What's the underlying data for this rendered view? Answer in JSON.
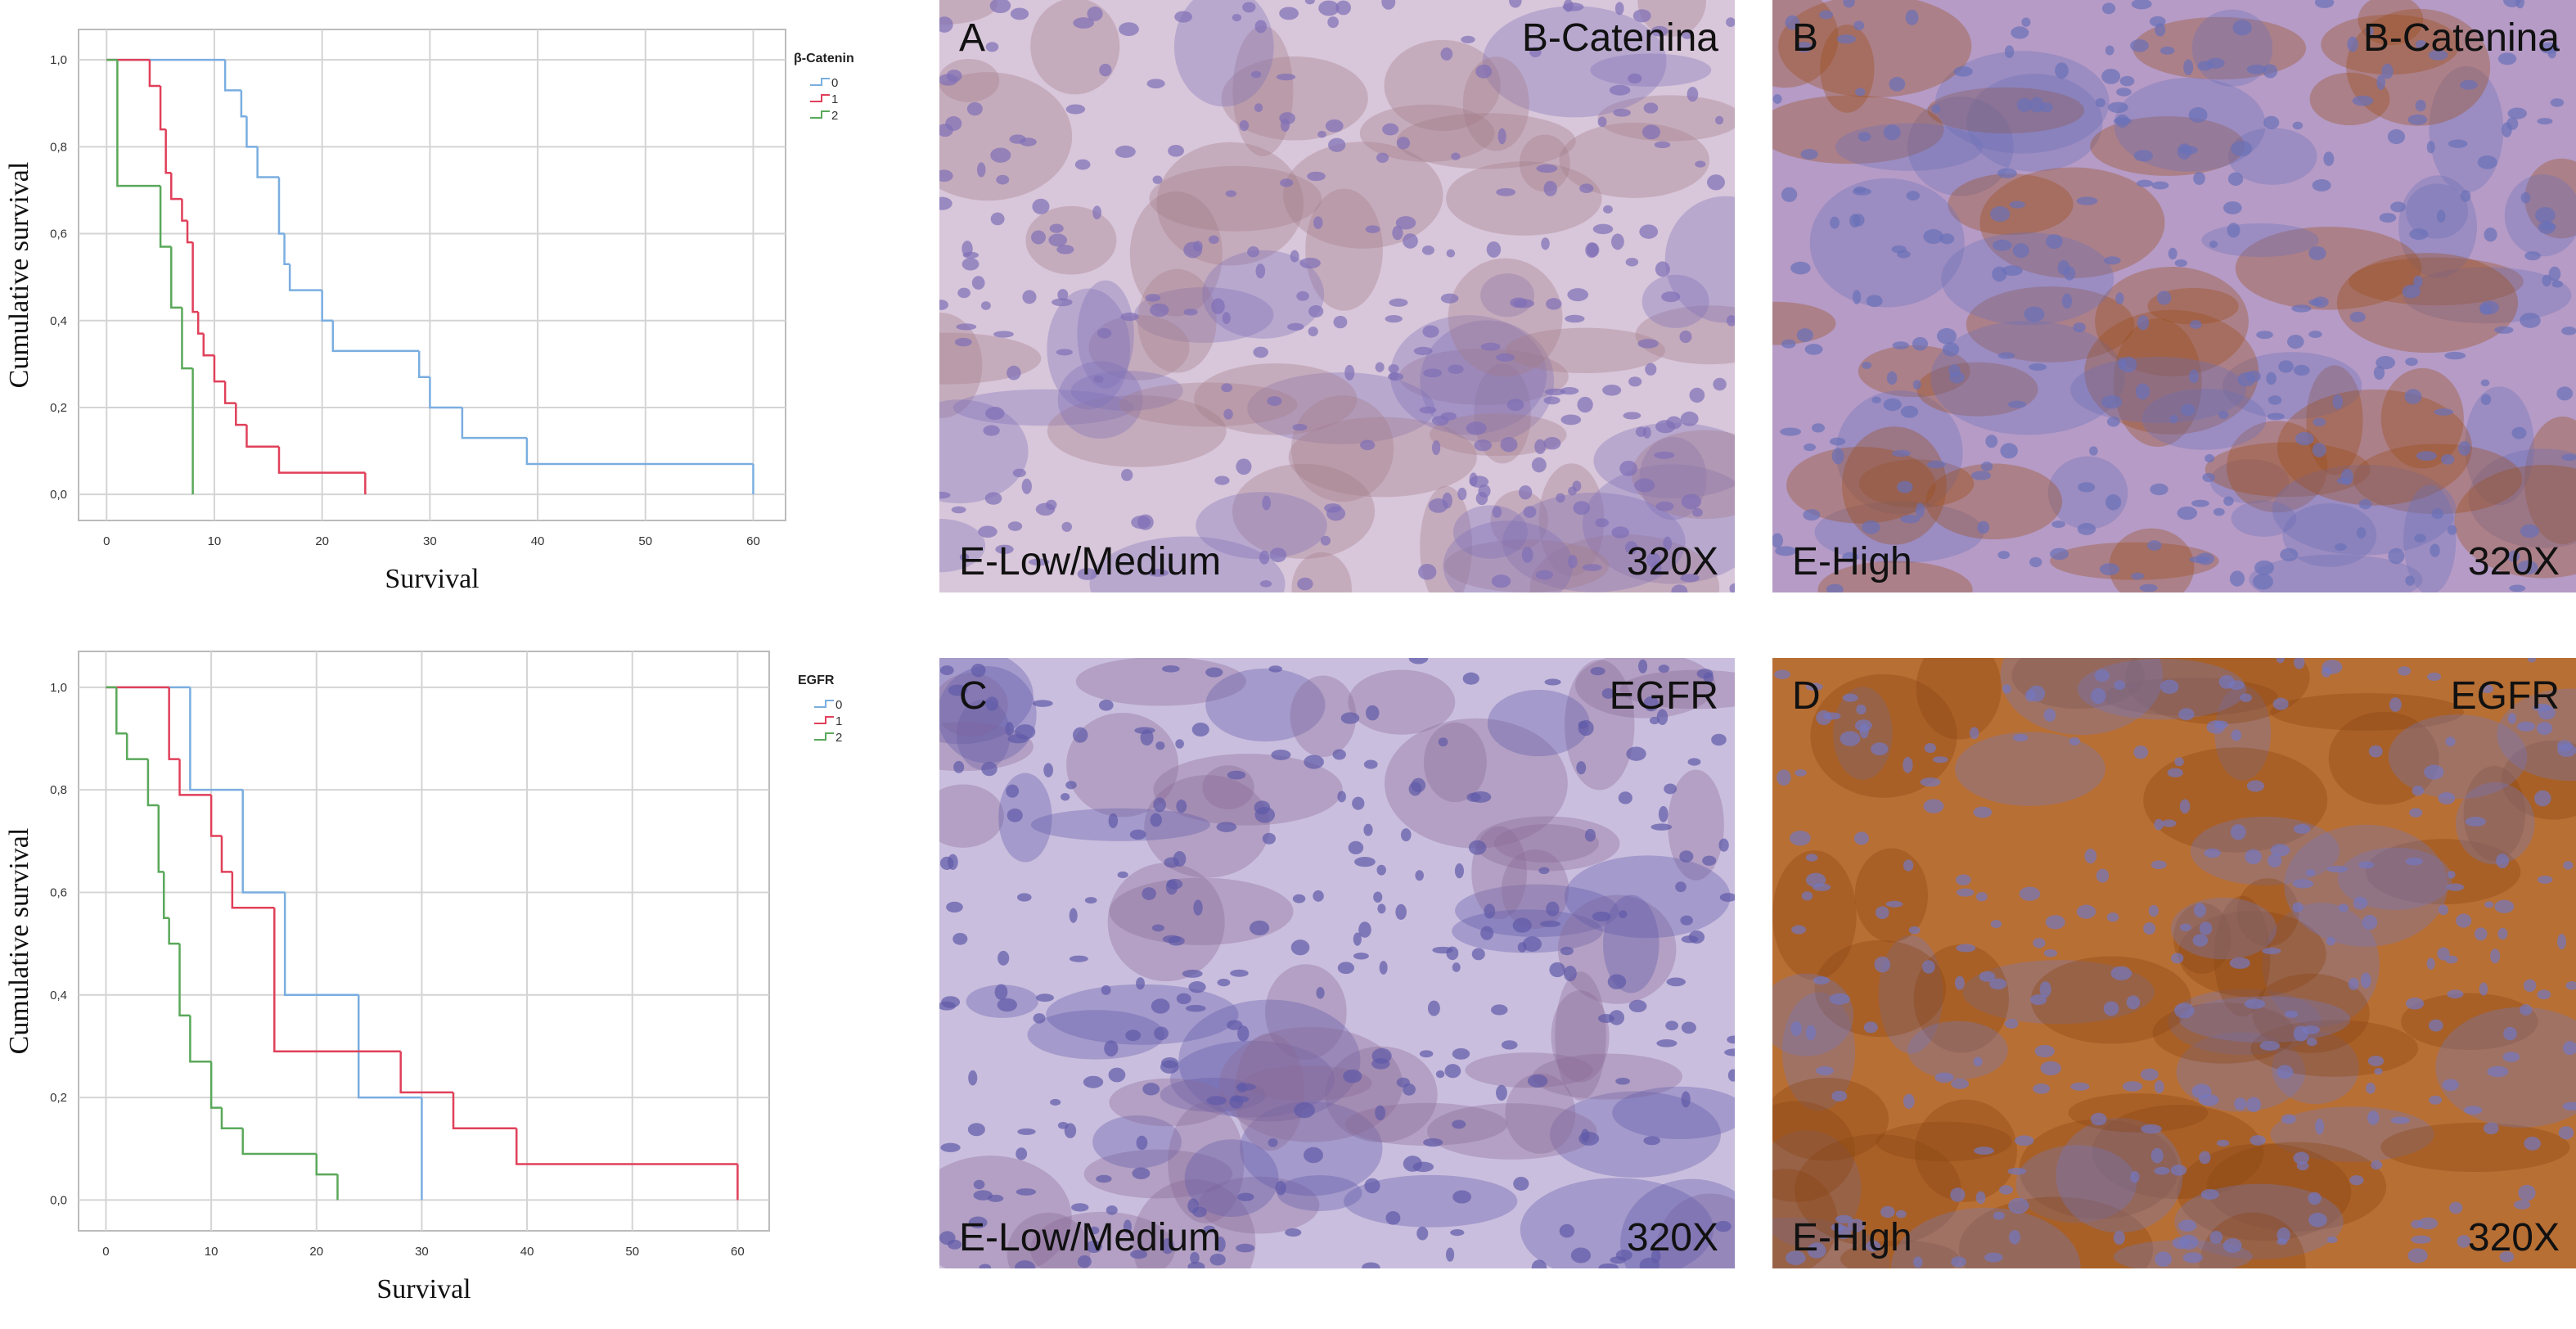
{
  "chart_data": [
    {
      "type": "step",
      "ylabel": "Cumulative survival",
      "xlabel": "Survival",
      "legend_title": "β-Catenin",
      "xlim": [
        -2.6,
        63
      ],
      "ylim": [
        -0.06,
        1.07
      ],
      "xticks": [
        0,
        10,
        20,
        30,
        40,
        50,
        60
      ],
      "yticks": [
        {
          "value": 0,
          "label": "0,0"
        },
        {
          "value": 0.2,
          "label": "0,2"
        },
        {
          "value": 0.4,
          "label": "0,4"
        },
        {
          "value": 0.6,
          "label": "0,6"
        },
        {
          "value": 0.8,
          "label": "0,8"
        },
        {
          "value": 1,
          "label": "1,0"
        }
      ],
      "grid": true,
      "series": [
        {
          "name": "0",
          "color": "#7aaee0",
          "x": [
            0,
            11,
            12.5,
            13,
            14,
            16,
            16.5,
            17,
            20,
            21,
            29,
            30,
            33,
            39,
            60
          ],
          "values": [
            1,
            0.93,
            0.87,
            0.8,
            0.73,
            0.6,
            0.53,
            0.47,
            0.4,
            0.33,
            0.27,
            0.2,
            0.13,
            0.07,
            0
          ]
        },
        {
          "name": "1",
          "color": "#e0405a",
          "x": [
            0,
            4,
            5,
            5.5,
            6,
            7,
            7.5,
            8,
            8.5,
            9,
            10,
            11,
            12,
            13,
            16,
            24
          ],
          "values": [
            1,
            0.94,
            0.84,
            0.74,
            0.68,
            0.63,
            0.58,
            0.42,
            0.37,
            0.32,
            0.26,
            0.21,
            0.16,
            0.11,
            0.05,
            0
          ]
        },
        {
          "name": "2",
          "color": "#5aa85a",
          "x": [
            0,
            1,
            5,
            6,
            7,
            8
          ],
          "values": [
            1,
            0.71,
            0.57,
            0.43,
            0.29,
            0
          ]
        }
      ]
    },
    {
      "type": "step",
      "ylabel": "Cumulative survival",
      "xlabel": "Survival",
      "legend_title": "EGFR",
      "xlim": [
        -2.6,
        63
      ],
      "ylim": [
        -0.06,
        1.07
      ],
      "xticks": [
        0,
        10,
        20,
        30,
        40,
        50,
        60
      ],
      "yticks": [
        {
          "value": 0,
          "label": "0,0"
        },
        {
          "value": 0.2,
          "label": "0,2"
        },
        {
          "value": 0.4,
          "label": "0,4"
        },
        {
          "value": 0.6,
          "label": "0,6"
        },
        {
          "value": 0.8,
          "label": "0,8"
        },
        {
          "value": 1,
          "label": "1,0"
        }
      ],
      "grid": true,
      "series": [
        {
          "name": "0",
          "color": "#7aaee0",
          "x": [
            0,
            8,
            13,
            17,
            24,
            30
          ],
          "values": [
            1,
            0.8,
            0.6,
            0.4,
            0.2,
            0
          ]
        },
        {
          "name": "1",
          "color": "#e0405a",
          "x": [
            0,
            6,
            7,
            10,
            11,
            12,
            16,
            28,
            33,
            39,
            60
          ],
          "values": [
            1,
            0.86,
            0.79,
            0.71,
            0.64,
            0.57,
            0.29,
            0.21,
            0.14,
            0.07,
            0
          ]
        },
        {
          "name": "2",
          "color": "#5aa85a",
          "x": [
            0,
            1,
            2,
            4,
            5,
            5.5,
            6,
            7,
            8,
            10,
            11,
            13,
            20,
            22
          ],
          "values": [
            1,
            0.91,
            0.86,
            0.77,
            0.64,
            0.55,
            0.5,
            0.36,
            0.27,
            0.18,
            0.14,
            0.09,
            0.05,
            0
          ]
        }
      ]
    }
  ],
  "panels": [
    {
      "letter": "A",
      "marker": "B-Catenina",
      "level": "E-Low/Medium",
      "magnification": "320X"
    },
    {
      "letter": "B",
      "marker": "B-Catenina",
      "level": "E-High",
      "magnification": "320X"
    },
    {
      "letter": "C",
      "marker": "EGFR",
      "level": "E-Low/Medium",
      "magnification": "320X"
    },
    {
      "letter": "D",
      "marker": "EGFR",
      "level": "E-High",
      "magnification": "320X"
    }
  ]
}
